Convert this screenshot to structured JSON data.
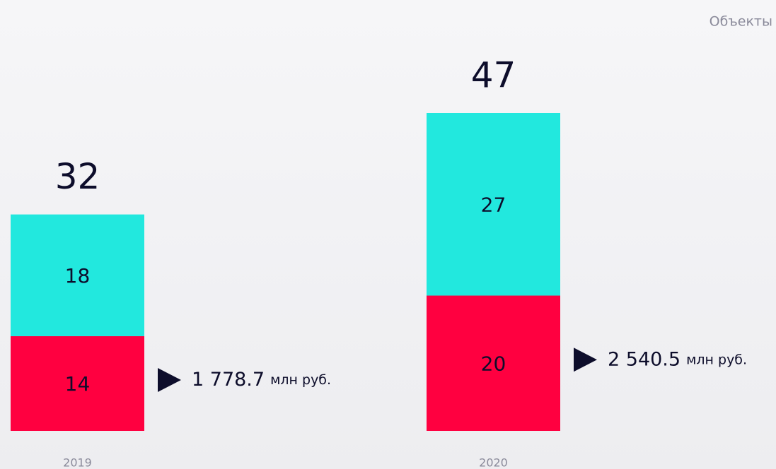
{
  "chart_data": {
    "type": "stacked_bar",
    "y_label": "Объекты",
    "categories": [
      "2019",
      "2020"
    ],
    "series": [
      {
        "color": "#ff0040",
        "values": [
          14,
          20
        ]
      },
      {
        "color": "#22e8de",
        "values": [
          18,
          27
        ]
      }
    ],
    "totals": [
      32,
      47
    ],
    "annotations": [
      {
        "value": "1 778.7",
        "unit": "млн руб."
      },
      {
        "value": "2 540.5",
        "unit": "млн руб."
      }
    ]
  }
}
